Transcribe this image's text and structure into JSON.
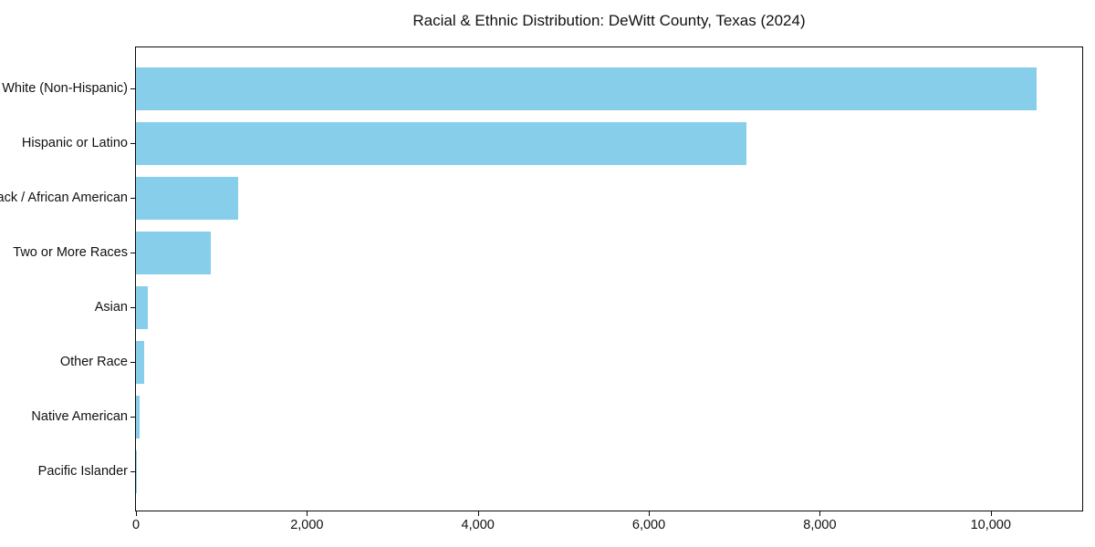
{
  "chart_data": {
    "type": "bar",
    "orientation": "horizontal",
    "title": "Racial & Ethnic Distribution: DeWitt County, Texas (2024)",
    "xlabel": "",
    "ylabel": "",
    "categories": [
      "White (Non-Hispanic)",
      "Hispanic or Latino",
      "Black / African American",
      "Two or More Races",
      "Asian",
      "Other Race",
      "Native American",
      "Pacific Islander"
    ],
    "values": [
      10540,
      7140,
      1200,
      880,
      140,
      100,
      40,
      5
    ],
    "xlim": [
      0,
      11070
    ],
    "x_ticks": [
      0,
      2000,
      4000,
      6000,
      8000,
      10000
    ],
    "x_tick_labels": [
      "0",
      "2,000",
      "4,000",
      "6,000",
      "8,000",
      "10,000"
    ],
    "grid": false,
    "legend": null
  },
  "colors": {
    "bar": "#87CEEB",
    "axis": "#0a0a0a",
    "text": "#111111",
    "background": "#ffffff"
  }
}
